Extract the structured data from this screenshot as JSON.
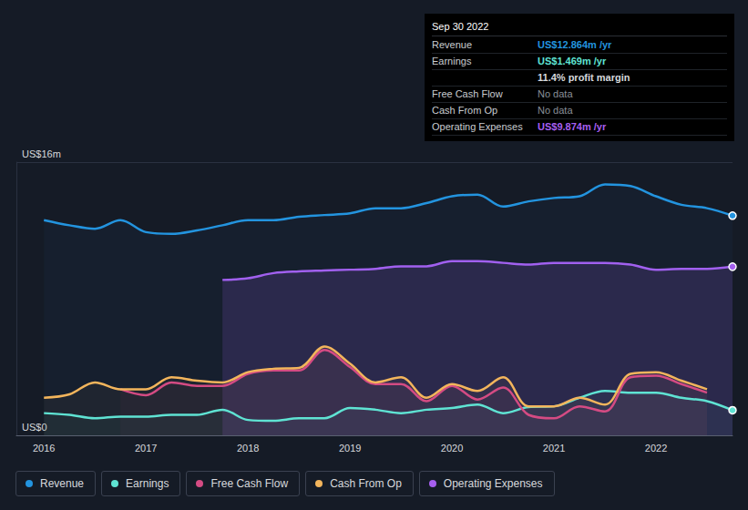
{
  "chart_data": {
    "type": "line",
    "x": [
      2016,
      2016.25,
      2016.5,
      2016.75,
      2017,
      2017.25,
      2017.5,
      2017.75,
      2018,
      2018.25,
      2018.5,
      2018.75,
      2019,
      2019.25,
      2019.5,
      2019.75,
      2020,
      2020.25,
      2020.5,
      2020.75,
      2021,
      2021.25,
      2021.5,
      2021.75,
      2022,
      2022.25,
      2022.5,
      2022.75
    ],
    "series": [
      {
        "name": "Revenue",
        "color": "#2394df",
        "type": "line",
        "values": [
          12.6,
          12.3,
          12.1,
          12.6,
          11.9,
          11.8,
          12.0,
          12.3,
          12.6,
          12.6,
          12.8,
          12.9,
          13.0,
          13.3,
          13.3,
          13.6,
          14.0,
          14.1,
          13.4,
          13.7,
          13.9,
          14.0,
          14.7,
          14.6,
          14.0,
          13.5,
          13.3,
          12.864
        ]
      },
      {
        "name": "Earnings",
        "color": "#5fe3d3",
        "type": "line",
        "values": [
          1.3,
          1.2,
          1.0,
          1.1,
          1.1,
          1.2,
          1.2,
          1.5,
          0.9,
          0.85,
          1.0,
          1.0,
          1.6,
          1.5,
          1.3,
          1.5,
          1.6,
          1.8,
          1.3,
          1.65,
          1.7,
          2.2,
          2.6,
          2.5,
          2.5,
          2.2,
          2.0,
          1.469
        ]
      },
      {
        "name": "Free Cash Flow",
        "color": "#d44b83",
        "type": "line",
        "values": [
          null,
          null,
          null,
          2.7,
          2.35,
          3.1,
          2.9,
          2.9,
          3.6,
          3.8,
          3.8,
          5.0,
          4.0,
          3.0,
          3.0,
          2.0,
          2.9,
          2.1,
          2.8,
          1.2,
          1.0,
          1.7,
          1.4,
          3.4,
          3.5,
          3.0,
          2.5,
          null
        ]
      },
      {
        "name": "Cash From Op",
        "color": "#f3b55c",
        "type": "line",
        "values": [
          2.2,
          2.4,
          3.1,
          2.7,
          2.7,
          3.4,
          3.2,
          3.1,
          3.7,
          3.9,
          3.95,
          5.2,
          4.2,
          3.1,
          3.4,
          2.2,
          3.0,
          2.6,
          3.4,
          1.7,
          1.7,
          2.2,
          1.8,
          3.6,
          3.7,
          3.2,
          2.7,
          null
        ]
      },
      {
        "name": "Operating Expenses",
        "color": "#a75ff0",
        "type": "area",
        "values": [
          null,
          null,
          null,
          null,
          null,
          null,
          null,
          9.1,
          9.2,
          9.5,
          9.6,
          9.65,
          9.7,
          9.75,
          9.9,
          9.9,
          10.2,
          10.2,
          10.1,
          10.0,
          10.1,
          10.1,
          10.1,
          10.0,
          9.7,
          9.75,
          9.75,
          9.874
        ]
      }
    ],
    "xlim": [
      2015.73,
      2022.75
    ],
    "xticks": [
      2016,
      2017,
      2018,
      2019,
      2020,
      2021,
      2022
    ],
    "ylim": [
      0,
      16
    ],
    "yticks": [
      {
        "value": 0,
        "label": "US$0"
      },
      {
        "value": 16,
        "label": "US$16m"
      }
    ],
    "grid": true,
    "legend": "bottom-left",
    "annotation": {
      "title": "Sep 30 2022",
      "rows": [
        {
          "label": "Revenue",
          "value": "US$12.864m /yr"
        },
        {
          "label": "Earnings",
          "value": "US$1.469m /yr"
        },
        {
          "label": "",
          "value": "11.4% profit margin"
        },
        {
          "label": "Free Cash Flow",
          "value": "No data"
        },
        {
          "label": "Cash From Op",
          "value": "No data"
        },
        {
          "label": "Operating Expenses",
          "value": "US$9.874m /yr"
        }
      ]
    }
  }
}
